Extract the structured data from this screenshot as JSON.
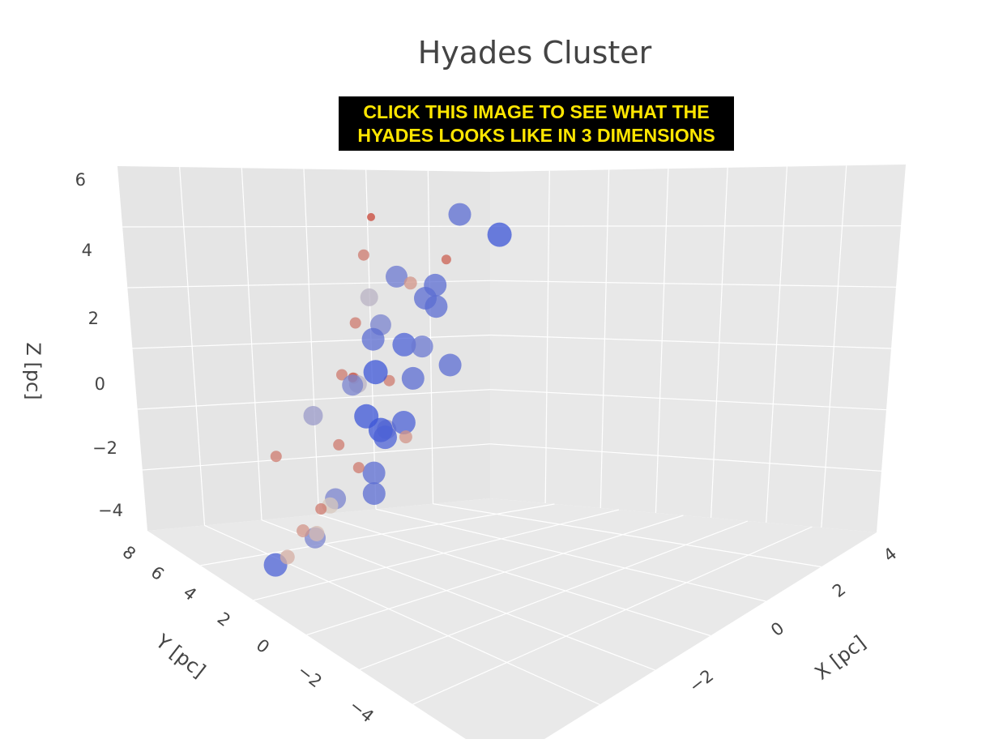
{
  "chart_data": {
    "type": "scatter3d",
    "title": "Hyades Cluster",
    "annotation": [
      "CLICK THIS IMAGE TO SEE WHAT THE",
      "HYADES LOOKS LIKE IN 3 DIMENSIONS"
    ],
    "xlabel": "X [pc]",
    "ylabel": "Y [pc]",
    "zlabel": "Z [pc]",
    "x_ticks": [
      "4",
      "2",
      "0",
      "−2"
    ],
    "y_ticks": [
      "8",
      "6",
      "4",
      "2",
      "0",
      "−2",
      "−4"
    ],
    "z_ticks": [
      "6",
      "4",
      "2",
      "0",
      "−2",
      "−4"
    ],
    "xlim": [
      -3.5,
      4.5
    ],
    "ylim": [
      -6,
      8.5
    ],
    "zlim": [
      -5,
      6.5
    ],
    "grid": true,
    "colorscale": "coolwarm",
    "note": "blue = large markers, red = small markers",
    "points": [
      {
        "x": 0.6,
        "y": 1.0,
        "z": 6.0,
        "s": 0.0
      },
      {
        "x": 1.2,
        "y": -0.2,
        "z": 4.2,
        "s": 0.2
      },
      {
        "x": -0.4,
        "y": 2.4,
        "z": 4.0,
        "s": 0.6
      },
      {
        "x": 2.8,
        "y": 1.5,
        "z": 4.0,
        "s": 0.9
      },
      {
        "x": 1.4,
        "y": 3.0,
        "z": 3.6,
        "s": 0.1
      },
      {
        "x": -1.2,
        "y": 3.0,
        "z": 3.8,
        "s": 0.2
      },
      {
        "x": -2.6,
        "y": 5.0,
        "z": 3.0,
        "s": 0.2
      },
      {
        "x": -2.4,
        "y": 4.2,
        "z": 3.0,
        "s": 0.2
      },
      {
        "x": -2.6,
        "y": 6.5,
        "z": 2.8,
        "s": 0.2
      },
      {
        "x": 0.8,
        "y": 3.0,
        "z": 2.8,
        "s": 0.9
      },
      {
        "x": 1.6,
        "y": 0.6,
        "z": 3.0,
        "s": 0.85
      },
      {
        "x": 0.2,
        "y": 2.0,
        "z": 2.5,
        "s": 0.8
      },
      {
        "x": 2.0,
        "y": 0.6,
        "z": 2.4,
        "s": 0.3
      },
      {
        "x": 2.3,
        "y": 1.2,
        "z": 2.0,
        "s": 0.9
      },
      {
        "x": 3.6,
        "y": 2.0,
        "z": 2.5,
        "s": 1.0
      },
      {
        "x": -1.4,
        "y": 3.4,
        "z": 1.8,
        "s": 0.6
      },
      {
        "x": -0.6,
        "y": 2.0,
        "z": 1.4,
        "s": 0.1
      },
      {
        "x": -3.2,
        "y": 2.6,
        "z": 1.0,
        "s": 0.2
      },
      {
        "x": -1.6,
        "y": 1.8,
        "z": 1.0,
        "s": 0.7
      },
      {
        "x": 0.6,
        "y": 2.4,
        "z": 1.4,
        "s": 0.95
      },
      {
        "x": 1.2,
        "y": 0.2,
        "z": 1.2,
        "s": 0.9
      },
      {
        "x": 2.6,
        "y": 0.8,
        "z": 1.0,
        "s": 0.9
      },
      {
        "x": -0.2,
        "y": 1.4,
        "z": 0.8,
        "s": 0.8
      },
      {
        "x": 1.0,
        "y": 0.6,
        "z": 0.2,
        "s": 1.0
      },
      {
        "x": -2.0,
        "y": 5.5,
        "z": 0.6,
        "s": 0.7
      },
      {
        "x": -3.8,
        "y": 6.0,
        "z": -0.2,
        "s": 0.8
      },
      {
        "x": -1.0,
        "y": 2.0,
        "z": -0.6,
        "s": 0.2
      },
      {
        "x": 2.4,
        "y": 0.5,
        "z": -0.2,
        "s": 0.85
      },
      {
        "x": 1.8,
        "y": 1.0,
        "z": -0.8,
        "s": 0.9
      },
      {
        "x": 0.6,
        "y": 0.8,
        "z": -1.0,
        "s": 1.0
      },
      {
        "x": 0.2,
        "y": 2.0,
        "z": -1.2,
        "s": 1.0
      },
      {
        "x": 3.2,
        "y": 0.5,
        "z": -1.6,
        "s": 0.9
      },
      {
        "x": -2.6,
        "y": 4.0,
        "z": -1.4,
        "s": 0.5
      },
      {
        "x": -3.2,
        "y": 4.5,
        "z": -1.0,
        "s": 0.2
      },
      {
        "x": -0.4,
        "y": 2.6,
        "z": -2.2,
        "s": 0.9
      },
      {
        "x": 0.6,
        "y": 1.6,
        "z": -1.8,
        "s": 0.95
      },
      {
        "x": 1.4,
        "y": 1.2,
        "z": -2.0,
        "s": 0.95
      },
      {
        "x": -0.8,
        "y": 3.2,
        "z": -2.6,
        "s": 0.9
      },
      {
        "x": 2.0,
        "y": 0.4,
        "z": -3.0,
        "s": 0.3
      },
      {
        "x": -1.0,
        "y": 1.0,
        "z": -3.8,
        "s": 0.8
      },
      {
        "x": -2.0,
        "y": 0.8,
        "z": -3.8,
        "s": 0.95
      },
      {
        "x": -0.4,
        "y": -0.4,
        "z": -4.0,
        "s": 0.3
      },
      {
        "x": 1.6,
        "y": -1.0,
        "z": -3.6,
        "s": 0.2
      },
      {
        "x": 0.4,
        "y": -1.0,
        "z": -4.8,
        "s": 0.45
      },
      {
        "x": -2.2,
        "y": 1.6,
        "z": -3.4,
        "s": 0.4
      }
    ]
  }
}
